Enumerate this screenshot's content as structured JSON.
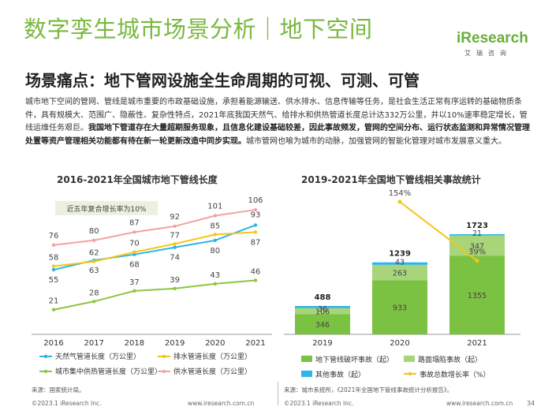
{
  "header": {
    "title": "数字孪生城市场景分析｜地下空间",
    "logo_text": "iResearch",
    "logo_sub": "艾瑞咨询"
  },
  "subtitle": "场景痛点：地下管网设施全生命周期的可视、可测、可管",
  "intro": {
    "normal": "城市地下空间的管网、管线是城市重要的市政基础设施，承担着能源输送、供水排水、信息传输等任务，是社会生活正常有序运转的基础物质条件，具有规模大、范围广、隐蔽性、复杂性特点，2021年底我国天然气、给排水和供热管道长度总计达332万公里，并以10%速率稳定增长，管线运维任务艰巨。",
    "bold": "我国地下管道存在大量超期服务现象，且信息化建设基础较差，因此事故频发，管网的空间分布、运行状态监测和异常情况管理处置等资产管理相关功能都有待在新一轮更新改造中同步实现。",
    "tail": "城市管网也喻为城市的动脉，加强管网的智能化管理对城市发展意义重大。"
  },
  "chart_data": [
    {
      "type": "line",
      "title": "2016-2021年全国城市地下管线长度",
      "annotation": "近五年复合增长率为10%",
      "categories": [
        "2016",
        "2017",
        "2018",
        "2019",
        "2020",
        "2021"
      ],
      "series": [
        {
          "name": "天然气管道长度（万公里）",
          "color": "#2bb5e8",
          "values": [
            55,
            63,
            68,
            74,
            80,
            93
          ]
        },
        {
          "name": "排水管道长度（万公里）",
          "color": "#f5c518",
          "values": [
            58,
            62,
            70,
            77,
            85,
            87
          ]
        },
        {
          "name": "城市集中供热管道长度（万公里）",
          "color": "#8cc63f",
          "values": [
            21,
            28,
            37,
            39,
            43,
            46
          ]
        },
        {
          "name": "供水管道长度（万公里）",
          "color": "#f4a3a0",
          "values": [
            76,
            80,
            87,
            92,
            101,
            106
          ]
        }
      ],
      "ylim": [
        0,
        120
      ],
      "source": "来源：国家统计局。"
    },
    {
      "type": "bar",
      "stacked": true,
      "title": "2019-2021年全国地下管线相关事故统计",
      "categories": [
        "2019",
        "2020",
        "2021"
      ],
      "series": [
        {
          "name": "地下管线破坏事故（起）",
          "color": "#7cc242",
          "values": [
            346,
            933,
            1355
          ]
        },
        {
          "name": "路面塌陷事故（起）",
          "color": "#a8d57a",
          "values": [
            106,
            263,
            347
          ]
        },
        {
          "name": "其他事故（起）",
          "color": "#2bb5e8",
          "values": [
            36,
            43,
            21
          ]
        }
      ],
      "totals": [
        488,
        1239,
        1723
      ],
      "line_series": {
        "name": "事故总数增长率（%）",
        "color": "#f5c518",
        "points": [
          {
            "x": "2020",
            "value": 154,
            "label": "154%"
          },
          {
            "x": "2021",
            "value": 39,
            "label": "39%"
          }
        ]
      },
      "ylim": [
        0,
        2000
      ],
      "source": "来源：城市系统所，《2021年全国地下管线事故统计分析报告》。"
    }
  ],
  "footer": {
    "copyright_left": "©2023.1 iResearch Inc.",
    "url_left": "www.iresearch.com.cn",
    "copyright_right": "©2023.1 iResearch Inc.",
    "url_right": "www.iresearch.com.cn",
    "page": "34"
  }
}
